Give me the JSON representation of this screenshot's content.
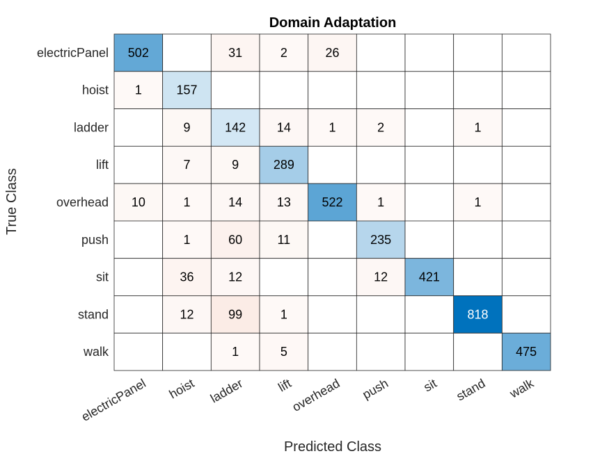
{
  "chart_data": {
    "type": "heatmap",
    "title": "Domain Adaptation",
    "xlabel": "Predicted Class",
    "ylabel": "True Class",
    "classes": [
      "electricPanel",
      "hoist",
      "ladder",
      "lift",
      "overhead",
      "push",
      "sit",
      "stand",
      "walk"
    ],
    "matrix": [
      [
        502,
        null,
        31,
        2,
        26,
        null,
        null,
        null,
        null
      ],
      [
        1,
        157,
        null,
        null,
        null,
        null,
        null,
        null,
        null
      ],
      [
        null,
        9,
        142,
        14,
        1,
        2,
        null,
        1,
        null
      ],
      [
        null,
        7,
        9,
        289,
        null,
        null,
        null,
        null,
        null
      ],
      [
        10,
        1,
        14,
        13,
        522,
        1,
        null,
        1,
        null
      ],
      [
        null,
        1,
        60,
        11,
        null,
        235,
        null,
        null,
        null
      ],
      [
        null,
        36,
        12,
        null,
        null,
        12,
        421,
        null,
        null
      ],
      [
        null,
        12,
        99,
        1,
        null,
        null,
        null,
        818,
        null
      ],
      [
        null,
        null,
        1,
        5,
        null,
        null,
        null,
        null,
        475
      ]
    ],
    "diagonal_color": "#0072bd",
    "offdiagonal_color": "#d95319",
    "grid": true
  }
}
